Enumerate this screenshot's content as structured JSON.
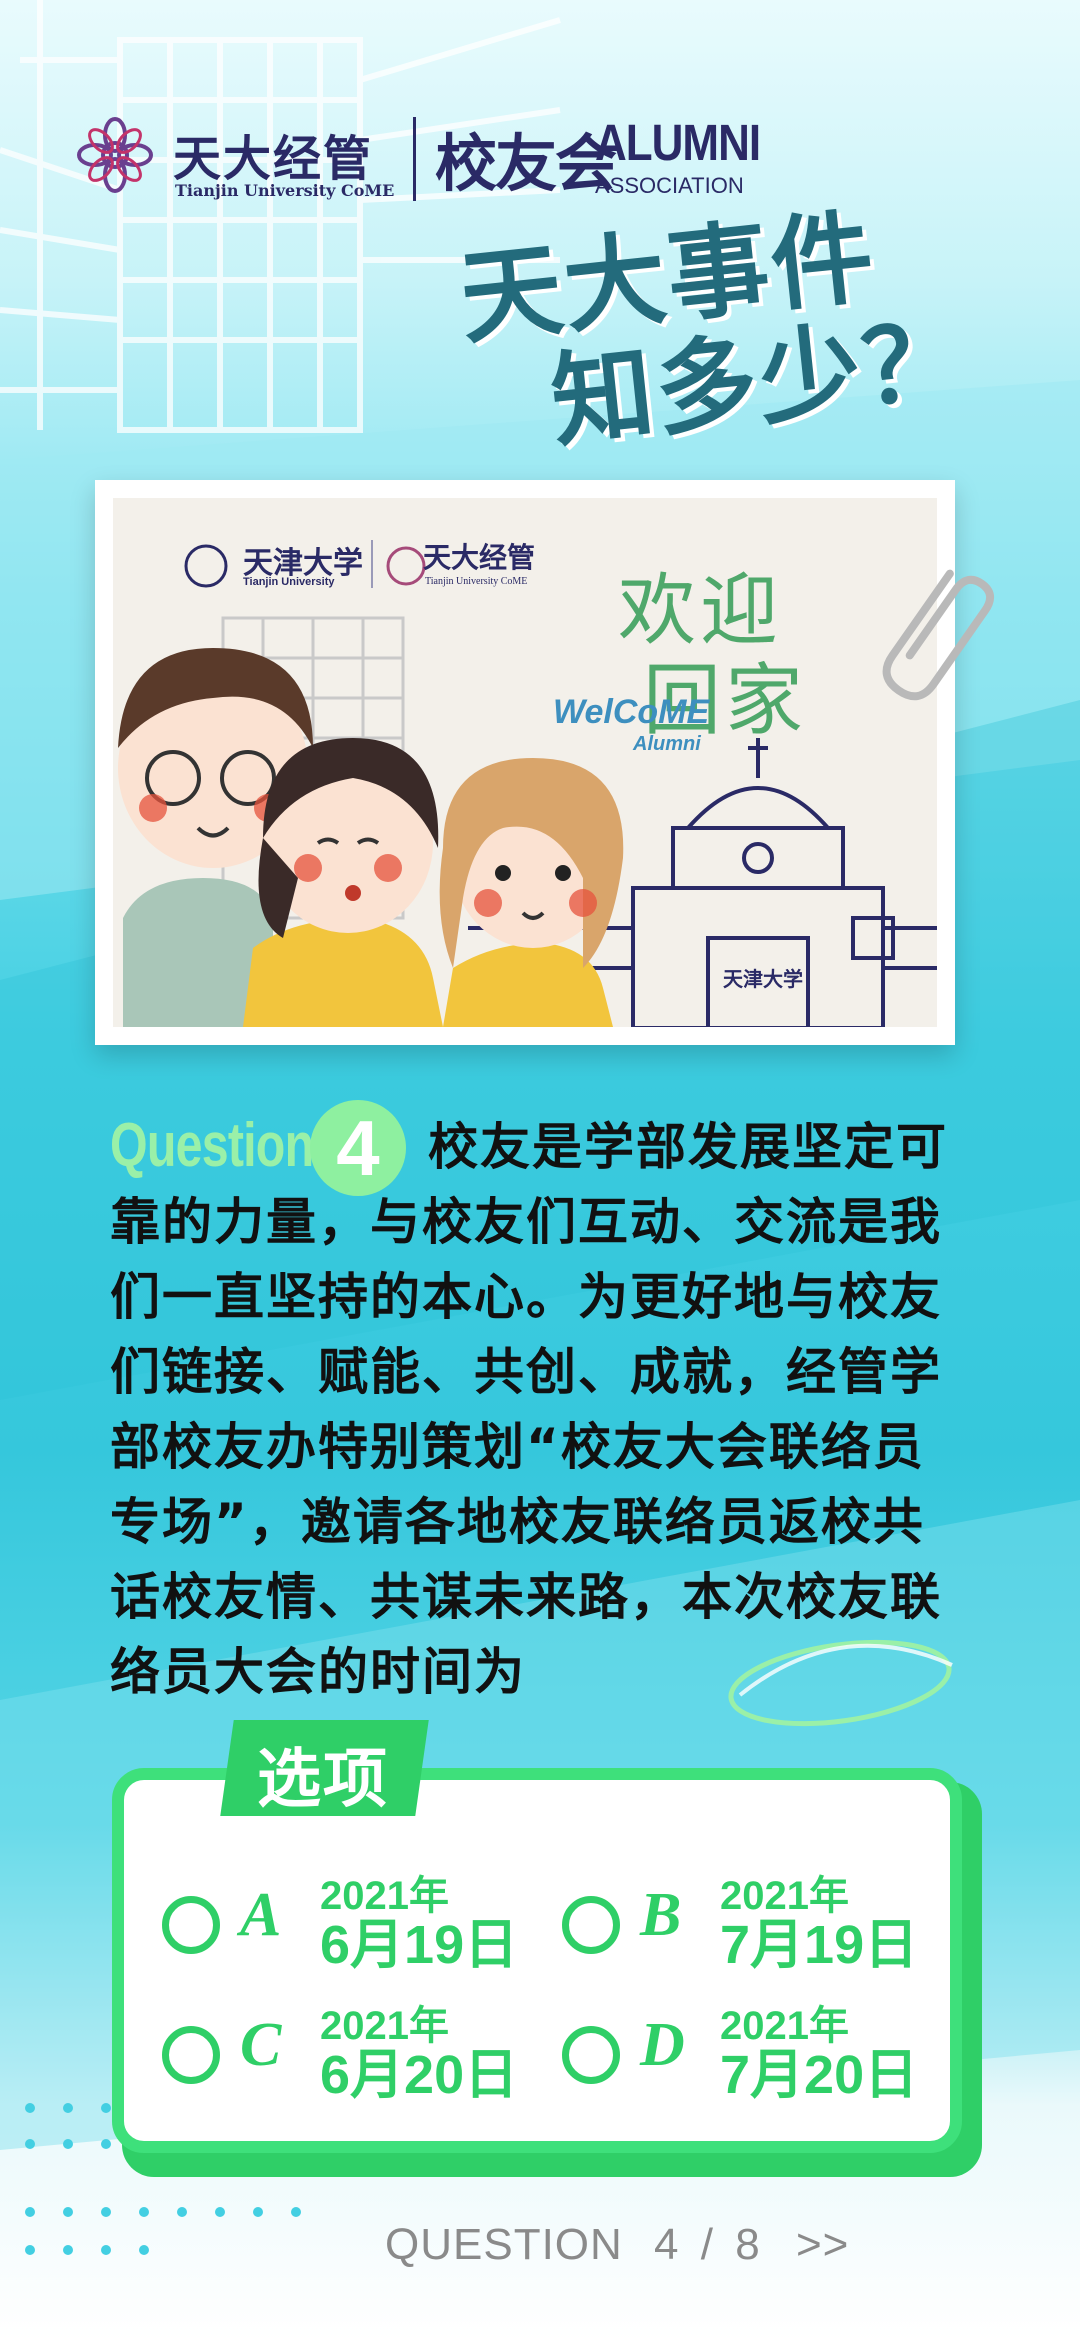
{
  "header": {
    "brand_cn": "天大经管",
    "brand_en": "Tianjin University CoME",
    "alumni_cn": "校友会",
    "alumni_en_1": "ALUMNI",
    "alumni_en_2": "ASSOCIATION"
  },
  "title": {
    "line1": "天大事件",
    "line2": "知多少？"
  },
  "card": {
    "tju_cn": "天津大学",
    "tju_en": "Tianjin University",
    "brand_cn": "天大经管",
    "brand_en": "Tianjin University CoME",
    "welcome_cn_1": "欢迎",
    "welcome_cn_2": "回家",
    "welcome_en": "WelCoME",
    "welcome_en_2": "Alumni",
    "gate_sign": "天津大学"
  },
  "question": {
    "label": "Question",
    "number": "4",
    "text": "校友是学部发展坚定可靠的力量，与校友们互动、交流是我们一直坚持的本心。为更好地与校友们链接、赋能、共创、成就，经管学部校友办特别策划“校友大会联络员专场”，邀请各地校友联络员返校共话校友情、共谋未来路，本次校友联络员大会的时间为"
  },
  "options": {
    "heading": "选项",
    "items": [
      {
        "letter": "A",
        "year": "2021年",
        "date": "6月19日"
      },
      {
        "letter": "B",
        "year": "2021年",
        "date": "7月19日"
      },
      {
        "letter": "C",
        "year": "2021年",
        "date": "6月20日"
      },
      {
        "letter": "D",
        "year": "2021年",
        "date": "7月20日"
      }
    ]
  },
  "footer": {
    "label": "QUESTION",
    "current": "4",
    "separator": "/",
    "total": "8",
    "next": ">>"
  },
  "colors": {
    "navy": "#2a2a66",
    "teal_title": "#236b7c",
    "green": "#2fcf67",
    "mint": "#9af0a8",
    "cyan": "#43cfe2"
  }
}
